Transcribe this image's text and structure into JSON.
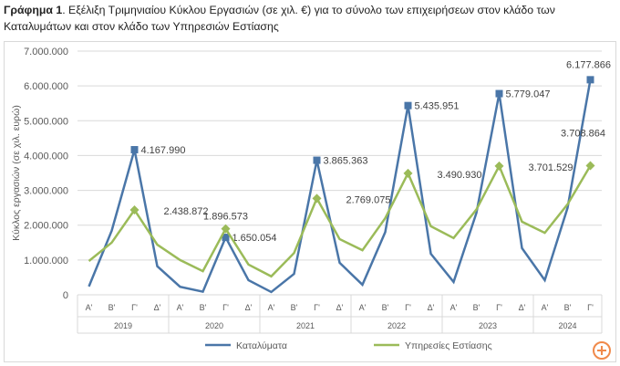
{
  "title": {
    "bold": "Γράφημα 1",
    "rest": ". Εξέλιξη Τριμηνιαίου Κύκλου Εργασιών (σε χιλ. €) για το σύνολο των επιχειρήσεων στον κλάδο των Καταλυμάτων και στον κλάδο των Υπηρεσιών Εστίασης"
  },
  "chart_data": {
    "type": "line",
    "ylabel": "Κύκλος εργασιών (σε χιλ. ευρώ)",
    "ylim": [
      0,
      7000000
    ],
    "yticks": [
      "0",
      "1.000.000",
      "2.000.000",
      "3.000.000",
      "4.000.000",
      "5.000.000",
      "6.000.000",
      "7.000.000"
    ],
    "grid": true,
    "legend": "bottom",
    "quarters": [
      "Α'",
      "Β'",
      "Γ'",
      "Δ'",
      "Α'",
      "Β'",
      "Γ'",
      "Δ'",
      "Α'",
      "Β'",
      "Γ'",
      "Δ'",
      "Α'",
      "Β'",
      "Γ'",
      "Δ'",
      "Α'",
      "Β'",
      "Γ'",
      "Δ'",
      "Α'",
      "Β'",
      "Γ'"
    ],
    "years": [
      "2019",
      "2020",
      "2021",
      "2022",
      "2023",
      "2024"
    ],
    "series": [
      {
        "name": "Καταλύματα",
        "color": "#4a76a8",
        "values": [
          240000,
          1840000,
          4167990,
          820000,
          230000,
          90000,
          1650054,
          420000,
          80000,
          600000,
          3865363,
          920000,
          290000,
          1800000,
          5435951,
          1180000,
          370000,
          2350000,
          5779047,
          1340000,
          420000,
          2500000,
          6177866
        ],
        "labels": {
          "2": "4.167.990",
          "6": "1.650.054",
          "10": "3.865.363",
          "14": "5.435.951",
          "18": "5.779.047",
          "22": "6.177.866"
        }
      },
      {
        "name": "Υπηρεσίες Εστίασης",
        "color": "#9bbb59",
        "values": [
          970000,
          1500000,
          2438872,
          1440000,
          1000000,
          680000,
          1896573,
          870000,
          530000,
          1200000,
          2769075,
          1600000,
          1280000,
          2200000,
          3490930,
          1970000,
          1630000,
          2450000,
          3701529,
          2100000,
          1780000,
          2600000,
          3708864
        ],
        "labels": {
          "2": "2.438.872",
          "6": "1.896.573",
          "10": "2.769.075",
          "14": "3.490.930",
          "18": "3.701.529",
          "22": "3.708.864"
        }
      }
    ]
  }
}
